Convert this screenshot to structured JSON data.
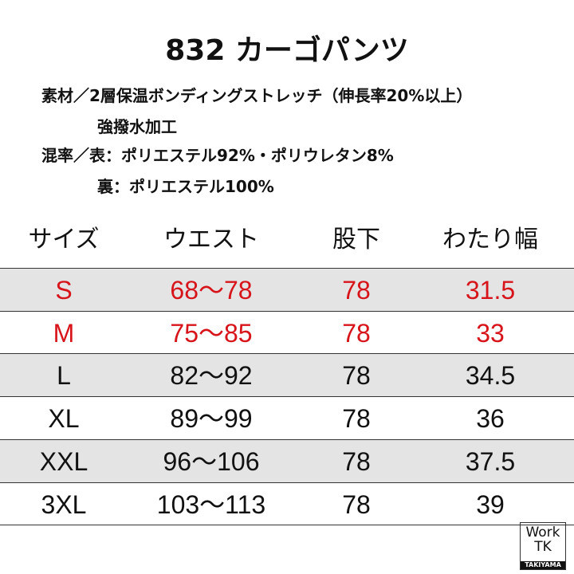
{
  "header": {
    "title": "832 カーゴパンツ"
  },
  "specs": [
    {
      "text": "素材／2層保温ボンディングストレッチ（伸長率20%以上）",
      "indent": false
    },
    {
      "text": "強撥水加工",
      "indent": true
    },
    {
      "text": "混率／表：ポリエステル92%・ポリウレタン8%",
      "indent": false
    },
    {
      "text": "裏：ポリエステル100%",
      "indent": true
    }
  ],
  "table": {
    "columns": [
      "サイズ",
      "ウエスト",
      "股下",
      "わたり幅"
    ],
    "rows": [
      {
        "cells": [
          "S",
          "68〜78",
          "78",
          "31.5"
        ],
        "color": "#d7141a"
      },
      {
        "cells": [
          "M",
          "75〜85",
          "78",
          "33"
        ],
        "color": "#d7141a"
      },
      {
        "cells": [
          "L",
          "82〜92",
          "78",
          "34.5"
        ],
        "color": "#111111"
      },
      {
        "cells": [
          "XL",
          "89〜99",
          "78",
          "36"
        ],
        "color": "#111111"
      },
      {
        "cells": [
          "XXL",
          "96〜106",
          "78",
          "37.5"
        ],
        "color": "#111111"
      },
      {
        "cells": [
          "3XL",
          "103〜113",
          "78",
          "39"
        ],
        "color": "#111111"
      }
    ]
  },
  "logo": {
    "line1": "Work",
    "line2": "TK",
    "brand": "TAKIYAMA"
  }
}
